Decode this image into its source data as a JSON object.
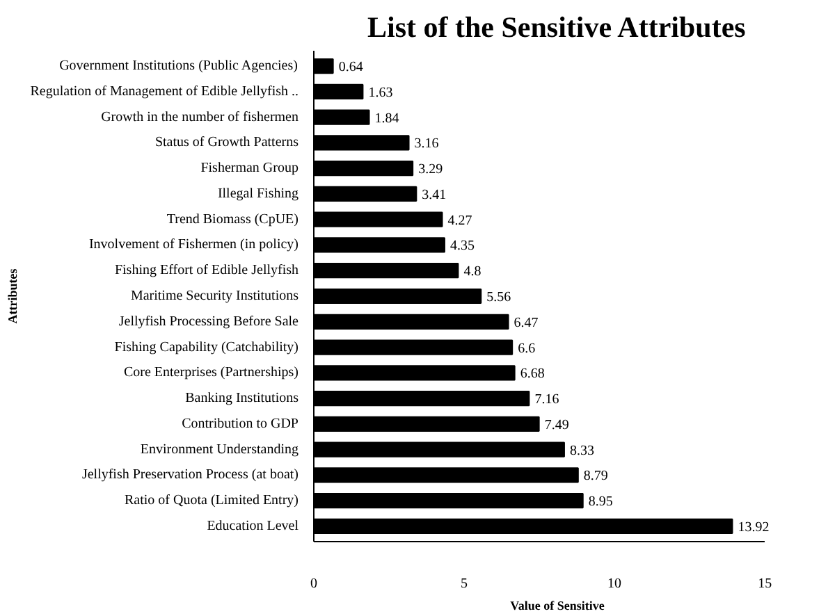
{
  "chart_data": {
    "type": "bar",
    "orientation": "horizontal",
    "title": "List of the Sensitive Attributes",
    "xlabel": "Value of Sensitive",
    "ylabel": "Attributes",
    "categories": [
      "Government Institutions (Public Agencies)",
      "Regulation of Management of Edible Jellyfish ..",
      "Growth in the number of fishermen",
      "Status of Growth Patterns",
      "Fisherman Group",
      "Illegal Fishing",
      "Trend Biomass (CpUE)",
      "Involvement of Fishermen (in policy)",
      "Fishing Effort of Edible Jellyfish",
      "Maritime Security Institutions",
      "Jellyfish Processing Before Sale",
      "Fishing Capability (Catchability)",
      "Core Enterprises (Partnerships)",
      "Banking Institutions",
      "Contribution to GDP",
      "Environment Understanding",
      "Jellyfish Preservation Process (at boat)",
      "Ratio of Quota (Limited Entry)",
      "Education Level"
    ],
    "values": [
      0.64,
      1.63,
      1.84,
      3.16,
      3.29,
      3.41,
      4.27,
      4.35,
      4.8,
      5.56,
      6.47,
      6.6,
      6.68,
      7.16,
      7.49,
      8.33,
      8.79,
      8.95,
      13.92
    ],
    "color": "#000000",
    "xlim": [
      0,
      15
    ],
    "xticks": [
      0,
      5,
      10,
      15
    ],
    "data_labels": true,
    "grid": false,
    "legend": false
  }
}
